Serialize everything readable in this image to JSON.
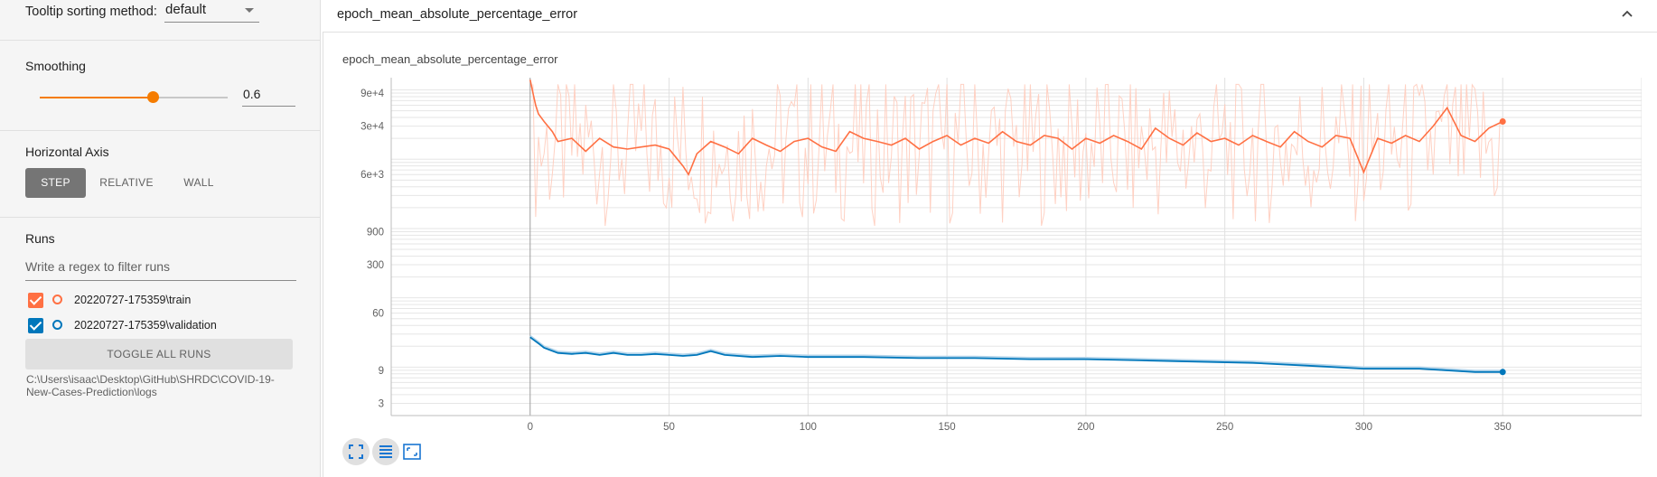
{
  "sidebar": {
    "tooltip_sort_label": "Tooltip sorting method:",
    "tooltip_sort_value": "default",
    "smoothing_label": "Smoothing",
    "smoothing_value": "0.6",
    "smoothing_fraction": 0.6,
    "horizontal_axis_label": "Horizontal Axis",
    "axis_options": [
      "STEP",
      "RELATIVE",
      "WALL"
    ],
    "axis_selected": "STEP",
    "runs_label": "Runs",
    "filter_placeholder": "Write a regex to filter runs",
    "runs": [
      {
        "name": "20220727-175359\\train",
        "color": "#ff7043",
        "checked": true
      },
      {
        "name": "20220727-175359\\validation",
        "color": "#0077bb",
        "checked": true
      }
    ],
    "toggle_all_label": "TOGGLE ALL RUNS",
    "logdir": "C:\\Users\\isaac\\Desktop\\GitHub\\SHRDC\\COVID-19-New-Cases-Prediction\\logs"
  },
  "card": {
    "header_title": "epoch_mean_absolute_percentage_error",
    "chart_title": "epoch_mean_absolute_percentage_error"
  },
  "colors": {
    "accent": "#f57c00",
    "train": "#ff7043",
    "validation": "#0077bb"
  },
  "icons": [
    "chevron-up-icon",
    "fit-domain-icon",
    "log-scale-icon",
    "zoom-select-icon"
  ],
  "chart_data": {
    "type": "line",
    "title": "epoch_mean_absolute_percentage_error",
    "x_scale": "linear",
    "y_scale": "log",
    "xlim": [
      -50,
      400
    ],
    "ylim": [
      2,
      150000
    ],
    "x_ticks": [
      0,
      50,
      100,
      150,
      200,
      250,
      300,
      350
    ],
    "y_ticks": [
      {
        "value": 90000,
        "label": "9e+4"
      },
      {
        "value": 30000,
        "label": "3e+4"
      },
      {
        "value": 6000,
        "label": "6e+3"
      },
      {
        "value": 900,
        "label": "900"
      },
      {
        "value": 300,
        "label": "300"
      },
      {
        "value": 60,
        "label": "60"
      },
      {
        "value": 9,
        "label": "9"
      },
      {
        "value": 3,
        "label": "3"
      }
    ],
    "grid": true,
    "legend": "none",
    "series": [
      {
        "run": "20220727-175359\\train",
        "x": [
          0,
          1,
          2,
          3,
          5,
          8,
          10,
          15,
          20,
          25,
          30,
          35,
          40,
          45,
          50,
          55,
          57,
          60,
          65,
          70,
          75,
          80,
          85,
          90,
          95,
          100,
          105,
          110,
          115,
          120,
          125,
          130,
          135,
          140,
          145,
          150,
          155,
          160,
          165,
          170,
          175,
          180,
          185,
          190,
          195,
          200,
          205,
          210,
          215,
          220,
          225,
          230,
          235,
          240,
          245,
          250,
          255,
          260,
          265,
          270,
          275,
          280,
          285,
          290,
          295,
          300,
          305,
          310,
          315,
          320,
          325,
          330,
          335,
          340,
          345,
          350
        ],
        "values": [
          140000,
          90000,
          60000,
          45000,
          35000,
          25000,
          18000,
          20000,
          13000,
          20000,
          15000,
          14000,
          15000,
          16000,
          14000,
          8000,
          6000,
          12000,
          18000,
          15000,
          12000,
          20000,
          16000,
          13000,
          18000,
          20000,
          15000,
          13000,
          25000,
          20000,
          18000,
          16000,
          20000,
          14000,
          18000,
          22000,
          16000,
          20000,
          17000,
          25000,
          18000,
          16000,
          22000,
          20000,
          14000,
          20000,
          17000,
          22000,
          18000,
          14000,
          28000,
          20000,
          16000,
          24000,
          18000,
          20000,
          16000,
          22000,
          18000,
          15000,
          25000,
          18000,
          15000,
          22000,
          20000,
          6500,
          20000,
          17000,
          22000,
          18000,
          30000,
          55000,
          22000,
          18000,
          28000,
          35000
        ]
      },
      {
        "run": "20220727-175359\\validation",
        "x": [
          0,
          3,
          5,
          10,
          15,
          20,
          25,
          30,
          35,
          40,
          45,
          50,
          55,
          60,
          65,
          70,
          80,
          90,
          100,
          120,
          140,
          160,
          180,
          200,
          220,
          240,
          260,
          280,
          300,
          320,
          340,
          350
        ],
        "values": [
          27,
          22,
          19,
          16,
          15.5,
          16,
          15,
          16,
          15,
          15,
          15.5,
          15,
          14.5,
          15,
          17,
          15,
          14,
          14.5,
          14,
          14,
          13.5,
          13.5,
          13,
          13,
          12.5,
          12,
          11.5,
          10.5,
          9.5,
          9.5,
          8.5,
          8.5
        ]
      }
    ]
  }
}
